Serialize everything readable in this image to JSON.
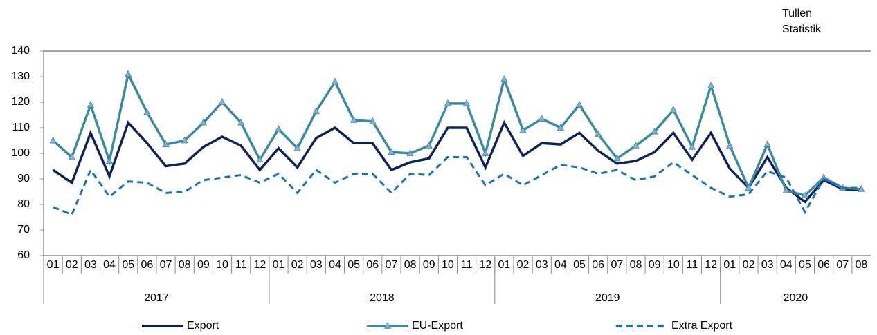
{
  "chart_data": {
    "type": "line",
    "annotation": [
      "Tullen",
      "Statistik"
    ],
    "categories": [
      "01",
      "02",
      "03",
      "04",
      "05",
      "06",
      "07",
      "08",
      "09",
      "10",
      "11",
      "12",
      "01",
      "02",
      "03",
      "04",
      "05",
      "06",
      "07",
      "08",
      "09",
      "10",
      "11",
      "12",
      "01",
      "02",
      "03",
      "04",
      "05",
      "06",
      "07",
      "08",
      "09",
      "10",
      "11",
      "12",
      "01",
      "02",
      "03",
      "04",
      "05",
      "06",
      "07",
      "08"
    ],
    "groups": [
      "2017",
      "2018",
      "2019",
      "2020"
    ],
    "series": [
      {
        "name": "Export",
        "color": "#0e2257",
        "dash": false,
        "marker": null,
        "values": [
          93.5,
          88.5,
          108,
          91,
          112,
          104,
          95,
          96,
          102.5,
          106.5,
          103,
          93.5,
          102,
          94.5,
          106,
          110,
          104,
          104,
          93.5,
          96.5,
          98,
          110,
          110,
          94.5,
          112,
          99,
          104,
          103.5,
          108,
          101,
          96,
          97,
          100.5,
          108,
          97.5,
          108,
          94,
          86.5,
          98.5,
          86.5,
          81,
          89.5,
          86,
          85.5
        ]
      },
      {
        "name": "EU-Export",
        "color": "#3b8b9b",
        "dash": false,
        "marker": "triangle",
        "marker_color": "#86acd9",
        "values": [
          105,
          98.5,
          119,
          97,
          131,
          116,
          103.5,
          105,
          112,
          120,
          112,
          97.5,
          109.5,
          102,
          116.5,
          128,
          113,
          112.5,
          100.5,
          100,
          103,
          119.5,
          119.5,
          100,
          129,
          109,
          113.5,
          110,
          119,
          107.5,
          98,
          103,
          108.5,
          117,
          102.5,
          126.5,
          103,
          86.5,
          103.5,
          85.5,
          83.5,
          90.5,
          86.5,
          86
        ]
      },
      {
        "name": "Extra Export",
        "color": "#1e72b8",
        "dash": true,
        "marker": null,
        "values": [
          79,
          76,
          93.5,
          83,
          89,
          88.5,
          84.5,
          85,
          89.5,
          90.5,
          91.5,
          88.5,
          92,
          84.5,
          93.5,
          88.5,
          92,
          92,
          84.5,
          92,
          91.5,
          98.5,
          98.5,
          87.5,
          92,
          87.5,
          91.5,
          95.5,
          94.5,
          92,
          93.5,
          89.5,
          91,
          96.5,
          91.5,
          86.5,
          83,
          84,
          93,
          90.5,
          77,
          90,
          86.5,
          86.5
        ]
      }
    ],
    "ylim": [
      60,
      140
    ],
    "yticks": [
      60,
      70,
      80,
      90,
      100,
      110,
      120,
      130,
      140
    ],
    "grid": false,
    "legend": "bottom"
  }
}
